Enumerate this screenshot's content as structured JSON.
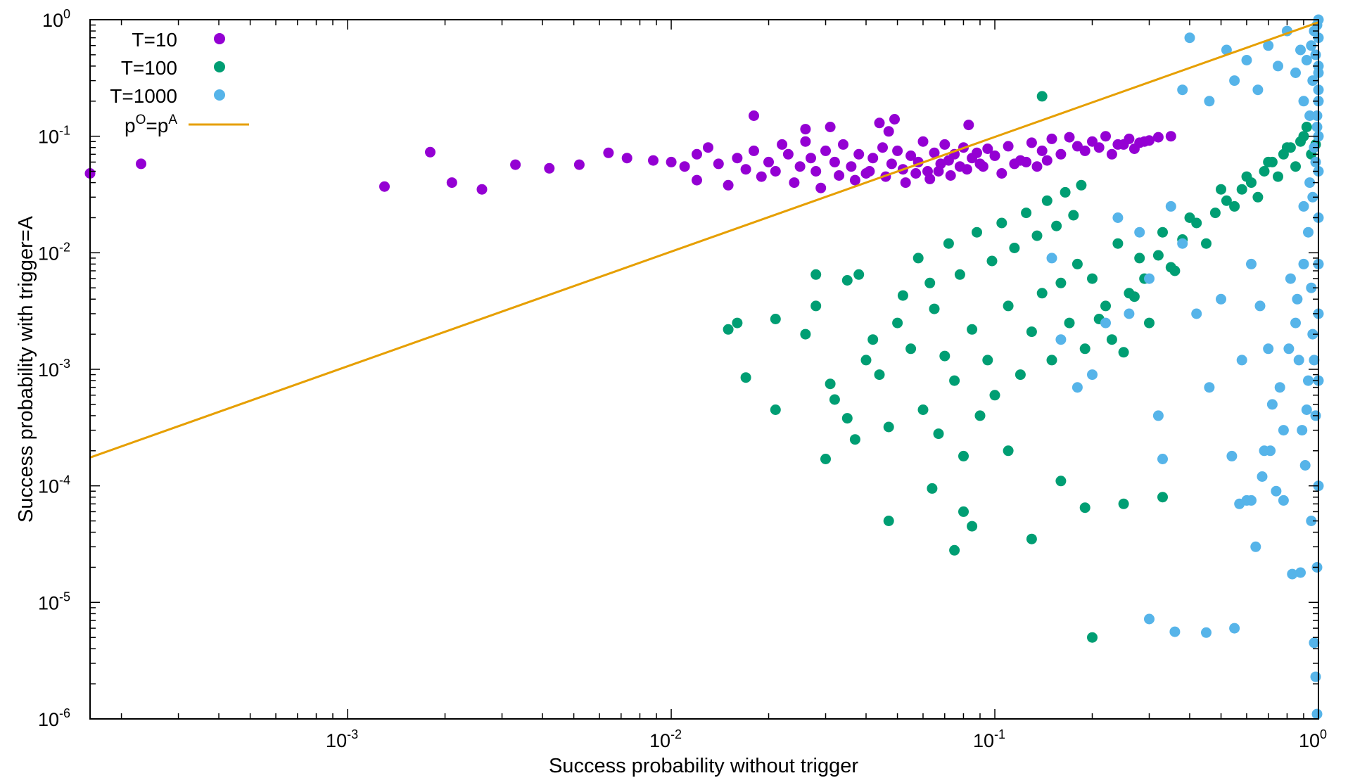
{
  "chart_data": {
    "type": "scatter",
    "xlabel": "Success probability without trigger",
    "ylabel": "Success probability with trigger=A",
    "x_scale": "log",
    "y_scale": "log",
    "xlim": [
      0.00016,
      1
    ],
    "ylim": [
      1e-06,
      1
    ],
    "grid": false,
    "legend_position": "top-left",
    "x_ticks": [
      {
        "value": 0.001,
        "base": "10",
        "exp": "-3"
      },
      {
        "value": 0.01,
        "base": "10",
        "exp": "-2"
      },
      {
        "value": 0.1,
        "base": "10",
        "exp": "-1"
      },
      {
        "value": 1,
        "base": "10",
        "exp": "0"
      }
    ],
    "y_ticks": [
      {
        "value": 1,
        "base": "10",
        "exp": "0"
      },
      {
        "value": 0.1,
        "base": "10",
        "exp": "-1"
      },
      {
        "value": 0.01,
        "base": "10",
        "exp": "-2"
      },
      {
        "value": 0.001,
        "base": "10",
        "exp": "-3"
      },
      {
        "value": 0.0001,
        "base": "10",
        "exp": "-4"
      },
      {
        "value": 1e-05,
        "base": "10",
        "exp": "-5"
      },
      {
        "value": 1e-06,
        "base": "10",
        "exp": "-6"
      }
    ],
    "series": [
      {
        "name": "T=10",
        "color": "#9400d3",
        "x": [
          0.00016,
          0.00023,
          0.0013,
          0.0018,
          0.0021,
          0.0026,
          0.0033,
          0.0042,
          0.0052,
          0.0064,
          0.0073,
          0.0088,
          0.01,
          0.011,
          0.012,
          0.013,
          0.014,
          0.016,
          0.017,
          0.018,
          0.02,
          0.021,
          0.022,
          0.023,
          0.025,
          0.026,
          0.027,
          0.028,
          0.03,
          0.032,
          0.034,
          0.036,
          0.038,
          0.04,
          0.042,
          0.045,
          0.048,
          0.05,
          0.052,
          0.055,
          0.058,
          0.06,
          0.062,
          0.065,
          0.068,
          0.07,
          0.072,
          0.075,
          0.078,
          0.08,
          0.085,
          0.088,
          0.09,
          0.095,
          0.1,
          0.11,
          0.12,
          0.13,
          0.14,
          0.15,
          0.16,
          0.17,
          0.18,
          0.2,
          0.22,
          0.24,
          0.26,
          0.28,
          0.3,
          0.32,
          0.35,
          0.012,
          0.015,
          0.019,
          0.024,
          0.029,
          0.033,
          0.037,
          0.041,
          0.046,
          0.053,
          0.057,
          0.063,
          0.067,
          0.073,
          0.082,
          0.092,
          0.105,
          0.115,
          0.125,
          0.135,
          0.145,
          0.19,
          0.21,
          0.23,
          0.25,
          0.27,
          0.29,
          0.031,
          0.044,
          0.049,
          0.083,
          0.018,
          0.026,
          0.047
        ],
        "y": [
          0.048,
          0.058,
          0.037,
          0.073,
          0.04,
          0.035,
          0.057,
          0.053,
          0.057,
          0.072,
          0.065,
          0.062,
          0.06,
          0.055,
          0.07,
          0.08,
          0.058,
          0.065,
          0.052,
          0.075,
          0.06,
          0.05,
          0.085,
          0.07,
          0.055,
          0.09,
          0.065,
          0.05,
          0.075,
          0.06,
          0.085,
          0.055,
          0.07,
          0.048,
          0.065,
          0.08,
          0.058,
          0.075,
          0.052,
          0.068,
          0.06,
          0.09,
          0.05,
          0.072,
          0.058,
          0.085,
          0.062,
          0.07,
          0.055,
          0.08,
          0.065,
          0.072,
          0.058,
          0.078,
          0.068,
          0.082,
          0.062,
          0.088,
          0.075,
          0.095,
          0.07,
          0.098,
          0.082,
          0.09,
          0.1,
          0.085,
          0.095,
          0.088,
          0.092,
          0.098,
          0.1,
          0.042,
          0.038,
          0.045,
          0.04,
          0.036,
          0.046,
          0.042,
          0.05,
          0.045,
          0.04,
          0.048,
          0.043,
          0.05,
          0.046,
          0.052,
          0.055,
          0.048,
          0.058,
          0.06,
          0.055,
          0.062,
          0.075,
          0.08,
          0.07,
          0.085,
          0.078,
          0.09,
          0.12,
          0.13,
          0.14,
          0.125,
          0.15,
          0.115,
          0.11
        ]
      },
      {
        "name": "T=100",
        "color": "#009e73",
        "x": [
          0.015,
          0.016,
          0.017,
          0.021,
          0.021,
          0.026,
          0.028,
          0.03,
          0.031,
          0.032,
          0.035,
          0.037,
          0.04,
          0.042,
          0.044,
          0.047,
          0.05,
          0.055,
          0.06,
          0.065,
          0.067,
          0.07,
          0.075,
          0.08,
          0.085,
          0.09,
          0.095,
          0.1,
          0.11,
          0.12,
          0.13,
          0.14,
          0.15,
          0.16,
          0.17,
          0.18,
          0.19,
          0.2,
          0.22,
          0.24,
          0.26,
          0.28,
          0.3,
          0.33,
          0.36,
          0.4,
          0.45,
          0.5,
          0.55,
          0.6,
          0.65,
          0.7,
          0.75,
          0.8,
          0.85,
          0.9,
          0.95,
          0.98,
          0.038,
          0.052,
          0.058,
          0.063,
          0.072,
          0.078,
          0.088,
          0.098,
          0.105,
          0.115,
          0.125,
          0.135,
          0.145,
          0.155,
          0.165,
          0.175,
          0.185,
          0.21,
          0.23,
          0.25,
          0.27,
          0.29,
          0.32,
          0.35,
          0.38,
          0.42,
          0.48,
          0.52,
          0.58,
          0.62,
          0.68,
          0.72,
          0.78,
          0.82,
          0.88,
          0.92,
          0.14,
          0.13,
          0.33,
          0.2,
          0.075,
          0.047,
          0.08,
          0.11,
          0.16,
          0.25,
          0.085,
          0.064,
          0.19,
          0.028,
          0.035
        ],
        "y": [
          0.0022,
          0.0025,
          0.00085,
          0.0027,
          0.00045,
          0.002,
          0.0035,
          0.00017,
          0.00075,
          0.00055,
          0.00038,
          0.00025,
          0.0012,
          0.0018,
          0.0009,
          0.00032,
          0.0025,
          0.0015,
          0.00045,
          0.0033,
          0.00028,
          0.0013,
          0.0008,
          0.00018,
          0.0022,
          0.0004,
          0.0012,
          0.0006,
          0.0035,
          0.0009,
          0.0021,
          0.0045,
          0.0012,
          0.0055,
          0.0025,
          0.008,
          0.0015,
          0.006,
          0.0035,
          0.012,
          0.0045,
          0.009,
          0.0025,
          0.015,
          0.007,
          0.02,
          0.012,
          0.035,
          0.025,
          0.045,
          0.03,
          0.06,
          0.045,
          0.08,
          0.055,
          0.1,
          0.07,
          0.085,
          0.0065,
          0.0043,
          0.009,
          0.0055,
          0.012,
          0.0065,
          0.015,
          0.0085,
          0.018,
          0.011,
          0.022,
          0.014,
          0.028,
          0.017,
          0.033,
          0.021,
          0.038,
          0.0027,
          0.0018,
          0.0014,
          0.0042,
          0.006,
          0.0095,
          0.0075,
          0.013,
          0.018,
          0.022,
          0.028,
          0.035,
          0.04,
          0.05,
          0.06,
          0.07,
          0.08,
          0.09,
          0.12,
          0.22,
          3.5e-05,
          8e-05,
          5e-06,
          2.8e-05,
          5e-05,
          6e-05,
          0.0002,
          0.00011,
          7e-05,
          4.5e-05,
          9.5e-05,
          6.5e-05,
          0.0065,
          0.0058
        ]
      },
      {
        "name": "T=1000",
        "color": "#56b4e9",
        "x": [
          0.4,
          0.38,
          0.46,
          0.52,
          0.55,
          0.6,
          0.65,
          0.7,
          0.75,
          0.8,
          0.85,
          0.88,
          0.9,
          0.92,
          0.94,
          0.95,
          0.96,
          0.97,
          0.98,
          0.99,
          1.0,
          1.0,
          1.0,
          1.0,
          1.0,
          1.0,
          1.0,
          1.0,
          1.0,
          1.0,
          1.0,
          0.99,
          0.98,
          0.97,
          0.96,
          0.95,
          0.93,
          0.91,
          0.89,
          0.87,
          0.85,
          0.82,
          0.78,
          0.74,
          0.7,
          0.66,
          0.62,
          0.58,
          0.54,
          0.5,
          0.46,
          0.42,
          0.38,
          0.35,
          0.32,
          0.3,
          0.28,
          0.26,
          0.24,
          0.22,
          0.2,
          0.18,
          0.16,
          0.15,
          0.33,
          0.45,
          0.55,
          0.62,
          0.68,
          0.72,
          0.78,
          0.83,
          0.88,
          0.92,
          0.95,
          0.97,
          0.98,
          0.99,
          0.57,
          0.6,
          0.64,
          0.67,
          0.71,
          0.76,
          0.81,
          0.86,
          0.9,
          0.93,
          0.96,
          0.98,
          0.99,
          1.0,
          0.9,
          0.94,
          0.97,
          0.99,
          1.0,
          0.3,
          0.36
        ],
        "y": [
          0.7,
          0.25,
          0.2,
          0.55,
          0.3,
          0.45,
          0.25,
          0.6,
          0.4,
          0.8,
          0.35,
          0.55,
          0.2,
          0.45,
          0.15,
          0.6,
          0.3,
          0.8,
          0.5,
          0.9,
          1.0,
          0.7,
          0.4,
          0.2,
          0.1,
          0.05,
          0.02,
          0.008,
          0.003,
          0.0008,
          0.0001,
          2e-05,
          0.0004,
          0.0012,
          0.002,
          0.005,
          0.0008,
          0.00015,
          0.0003,
          0.0012,
          0.0025,
          0.006,
          0.0003,
          9e-05,
          0.0015,
          0.0035,
          0.008,
          0.0012,
          0.00018,
          0.004,
          0.0007,
          0.003,
          0.012,
          0.025,
          0.0004,
          0.006,
          0.015,
          0.003,
          0.02,
          0.0025,
          0.0009,
          0.0007,
          0.0018,
          0.009,
          0.00017,
          5.5e-06,
          6e-06,
          7.5e-05,
          0.0002,
          0.0005,
          7.5e-05,
          1.75e-05,
          1.8e-05,
          0.00045,
          5e-05,
          4.5e-06,
          2.3e-06,
          1.1e-06,
          7e-05,
          7.5e-05,
          3e-05,
          0.00012,
          0.0002,
          0.0007,
          0.0015,
          0.004,
          0.008,
          0.015,
          0.03,
          0.06,
          0.12,
          0.35,
          0.025,
          0.04,
          0.08,
          0.15,
          0.25,
          7.2e-06,
          5.6e-06
        ]
      }
    ],
    "reference_line": {
      "label_base_left": "p",
      "label_sup_left": "O",
      "label_mid": "=p",
      "label_sup_right": "A",
      "color": "#e69f00",
      "points": [
        [
          0.00016,
          0.000175
        ],
        [
          1,
          0.95
        ]
      ]
    }
  }
}
